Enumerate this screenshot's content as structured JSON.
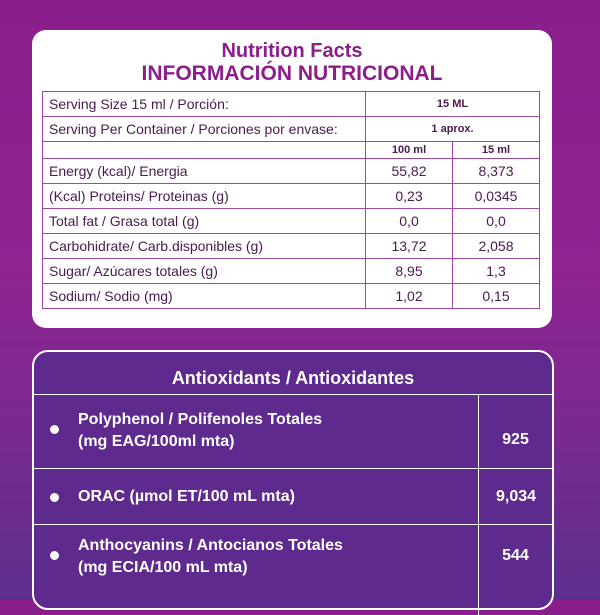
{
  "nutrition": {
    "title_en": "Nutrition Facts",
    "title_es": "INFORMACIÓN NUTRICIONAL",
    "serving_size_label": "Serving Size 15 ml / Porción:",
    "serving_size_value": "15 ML",
    "servings_label": "Serving Per Container / Porciones por envase:",
    "servings_value": "1 aprox.",
    "col_100": "100 ml",
    "col_15": "15 ml",
    "rows": [
      {
        "label": "Energy (kcal)/ Energia",
        "v100": "55,82",
        "v15": "8,373"
      },
      {
        "label": "(Kcal) Proteins/ Proteinas (g)",
        "v100": "0,23",
        "v15": "0,0345"
      },
      {
        "label": "Total fat / Grasa total (g)",
        "v100": "0,0",
        "v15": "0,0"
      },
      {
        "label": "Carbohidrate/ Carb.disponibles (g)",
        "v100": "13,72",
        "v15": "2,058"
      },
      {
        "label": "Sugar/ Azúcares totales (g)",
        "v100": "8,95",
        "v15": "1,3"
      },
      {
        "label": "Sodium/ Sodio (mg)",
        "v100": "1,02",
        "v15": "0,15"
      }
    ]
  },
  "antioxidants": {
    "title": "Antioxidants / Antioxidantes",
    "items": [
      {
        "line1": "Polyphenol / Polifenoles Totales",
        "line2": "(mg EAG/100ml mta)",
        "value": "925"
      },
      {
        "line1": "ORAC (µmol ET/100 mL mta)",
        "line2": "",
        "value": "9,034"
      },
      {
        "line1": "Anthocyanins / Antocianos Totales",
        "line2": "(mg ECIA/100 mL mta)",
        "value": "544"
      }
    ]
  },
  "colors": {
    "brand_magenta": "#8c1e8c",
    "panel_purple": "#5e2a8d"
  }
}
